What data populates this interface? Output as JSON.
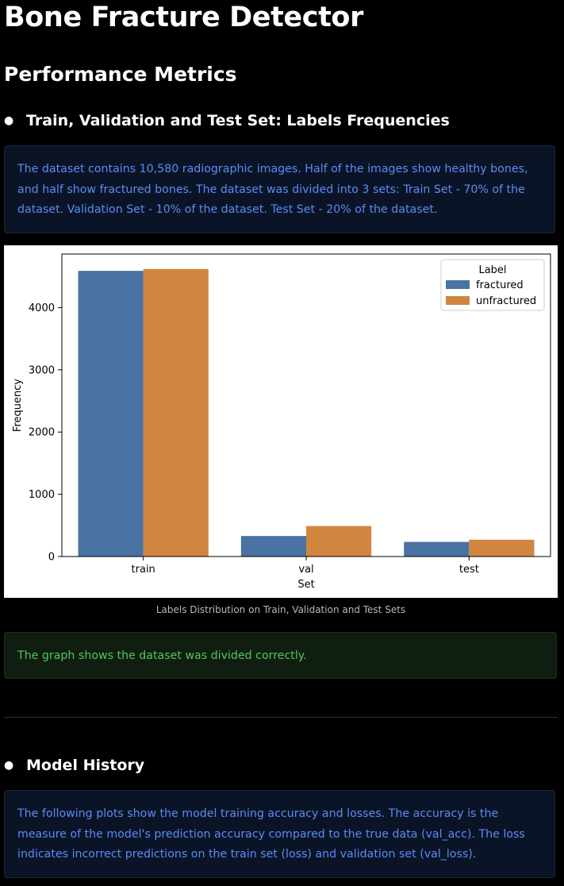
{
  "page": {
    "title": "Bone Fracture Detector",
    "section_title": "Performance Metrics"
  },
  "labels_section": {
    "heading": "Train, Validation and Test Set: Labels Frequencies",
    "info_text": "The dataset contains 10,580 radiographic images. Half of the images show healthy bones, and half show fractured bones. The dataset was divided into 3 sets: Train Set - 70% of the dataset. Validation Set - 10% of the dataset. Test Set - 20% of the dataset.",
    "caption": "Labels Distribution on Train, Validation and Test Sets",
    "success_text": "The graph shows the dataset was divided correctly."
  },
  "history_section": {
    "heading": "Model History",
    "info_text": "The following plots show the model training accuracy and losses. The accuracy is the measure of the model's prediction accuracy compared to the true data (val_acc). The loss indicates incorrect predictions on the train set (loss) and validation set (val_loss)."
  },
  "chart_data": {
    "type": "bar",
    "categories": [
      "train",
      "val",
      "test"
    ],
    "series": [
      {
        "name": "fractured",
        "values": [
          4590,
          330,
          235
        ],
        "color": "#4a72a2"
      },
      {
        "name": "unfractured",
        "values": [
          4620,
          490,
          270
        ],
        "color": "#d0863e"
      }
    ],
    "xlabel": "Set",
    "ylabel": "Frequency",
    "ylim": [
      0,
      4860
    ],
    "yticks": [
      0,
      1000,
      2000,
      3000,
      4000
    ],
    "legend_title": "Label",
    "legend_position": "top-right",
    "grid": false
  }
}
